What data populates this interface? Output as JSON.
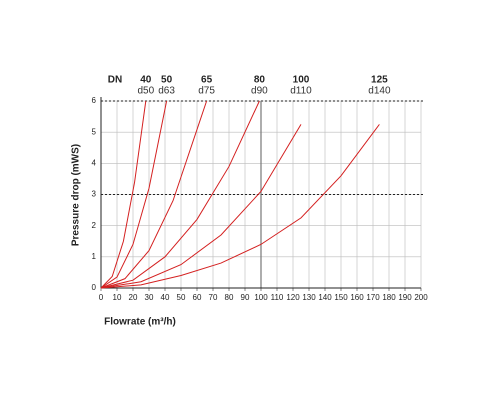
{
  "chart_data": {
    "type": "line",
    "dn_heading": "DN",
    "x_label": "Flowrate (m³/h)",
    "y_label": "Pressure drop (mWS)",
    "xlim": [
      0,
      200
    ],
    "ylim": [
      0,
      6
    ],
    "xticks": [
      0,
      10,
      20,
      30,
      40,
      50,
      60,
      70,
      80,
      90,
      100,
      110,
      120,
      130,
      140,
      150,
      160,
      170,
      180,
      190,
      200
    ],
    "yticks": [
      0,
      1,
      2,
      3,
      4,
      5,
      6
    ],
    "grid": true,
    "major_y": [
      3,
      6
    ],
    "major_x": [
      100
    ],
    "series": [
      {
        "name": "40",
        "sub_label": "d50",
        "color": "#d42020",
        "x": [
          0,
          7,
          14,
          21,
          28
        ],
        "values": [
          0,
          0.37,
          1.5,
          3.4,
          6
        ]
      },
      {
        "name": "50",
        "sub_label": "d63",
        "color": "#d42020",
        "x": [
          0,
          10,
          20,
          30,
          41
        ],
        "values": [
          0,
          0.35,
          1.4,
          3.2,
          6
        ]
      },
      {
        "name": "65",
        "sub_label": "d75",
        "color": "#d42020",
        "x": [
          0,
          15,
          30,
          45,
          66
        ],
        "values": [
          0,
          0.3,
          1.2,
          2.8,
          6
        ]
      },
      {
        "name": "80",
        "sub_label": "d90",
        "color": "#d42020",
        "x": [
          0,
          20,
          40,
          60,
          80,
          99
        ],
        "values": [
          0,
          0.25,
          1.0,
          2.2,
          3.9,
          6
        ]
      },
      {
        "name": "100",
        "sub_label": "d110",
        "color": "#d42020",
        "x": [
          0,
          25,
          50,
          75,
          100,
          125
        ],
        "values": [
          0,
          0.2,
          0.75,
          1.7,
          3.1,
          5.25
        ]
      },
      {
        "name": "125",
        "sub_label": "d140",
        "color": "#d42020",
        "x": [
          0,
          25,
          50,
          75,
          100,
          125,
          150,
          174
        ],
        "values": [
          0,
          0.1,
          0.4,
          0.8,
          1.4,
          2.25,
          3.6,
          5.25
        ]
      }
    ]
  }
}
